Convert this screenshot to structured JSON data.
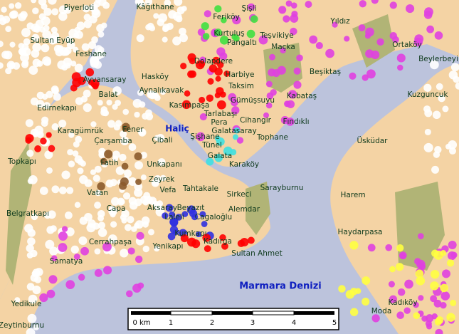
{
  "map": {
    "places": [
      "Piyerloti",
      "Kâğıthane",
      "Şişli",
      "Feriköy",
      "Yıldız",
      "Sultan Eyüp",
      "Kurtuluş",
      "Teşvikiye",
      "Pangaltı",
      "Maçka",
      "Ortaköy",
      "Feshane",
      "Beylerbeyi",
      "Dolapdere",
      "Ayvansaray",
      "Hasköy",
      "Harbiye",
      "Beşiktaş",
      "Aynalıkavak",
      "Taksim",
      "Kuzguncuk",
      "Balat",
      "Gümüşsuyu",
      "Kabataş",
      "Edirnekapı",
      "Kasımpaşa",
      "Tarlabaşı",
      "Pera",
      "Cihangir",
      "Fındıklı",
      "Karagümrük",
      "Fener",
      "Galatasaray",
      "Tophane",
      "Çarşamba",
      "Çibali",
      "Şişhane",
      "Tünel",
      "Üsküdar",
      "Topkapı",
      "Fatih",
      "Unkapanı",
      "Galata",
      "Karaköy",
      "Zeyrek",
      "Tahtakale",
      "Sarayburnu",
      "Harem",
      "Vatan",
      "Vefa",
      "Sirkeci",
      "Belgratkapı",
      "Capa",
      "Aksaray",
      "Beyazıt",
      "Alemdar",
      "Laleli",
      "Cagaloğlu",
      "Haydarpasa",
      "Kumkapı",
      "Cerrahpaşa",
      "Kadırga",
      "Yenikapı",
      "Sultan Ahmet",
      "Samatya",
      "Yedikule",
      "Kadıköy",
      "Moda",
      "Zeytinburnu"
    ],
    "waters": [
      "Haliç",
      "Marmara Denizi"
    ],
    "scale": [
      "0 km",
      "1",
      "2",
      "3",
      "4",
      "5"
    ]
  }
}
